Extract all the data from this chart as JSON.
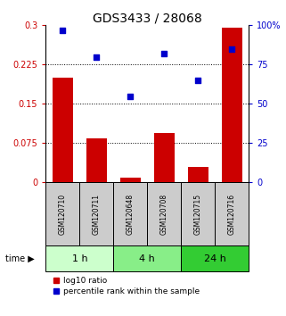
{
  "title": "GDS3433 / 28068",
  "samples": [
    "GSM120710",
    "GSM120711",
    "GSM120648",
    "GSM120708",
    "GSM120715",
    "GSM120716"
  ],
  "log10_ratio": [
    0.2,
    0.085,
    0.01,
    0.095,
    0.03,
    0.295
  ],
  "percentile_rank": [
    97,
    80,
    55,
    82,
    65,
    85
  ],
  "bar_color": "#cc0000",
  "dot_color": "#0000cc",
  "yticks_left": [
    0,
    0.075,
    0.15,
    0.225,
    0.3
  ],
  "yticks_right": [
    0,
    25,
    50,
    75,
    100
  ],
  "ylim_left": [
    0,
    0.3
  ],
  "ylim_right": [
    0,
    100
  ],
  "time_groups": [
    {
      "label": "1 h",
      "color": "#ccffcc",
      "start": 0,
      "end": 1
    },
    {
      "label": "4 h",
      "color": "#88ee88",
      "start": 2,
      "end": 3
    },
    {
      "label": "24 h",
      "color": "#33cc33",
      "start": 4,
      "end": 5
    }
  ],
  "xlabel_color": "#cc0000",
  "ylabel_right_color": "#0000cc",
  "legend_bar_label": "log10 ratio",
  "legend_dot_label": "percentile rank within the sample",
  "background_color": "#ffffff",
  "sample_box_color": "#cccccc",
  "title_fontsize": 10,
  "tick_fontsize": 7,
  "label_fontsize": 5.5,
  "time_fontsize": 8,
  "legend_fontsize": 6.5,
  "bar_width": 0.6
}
